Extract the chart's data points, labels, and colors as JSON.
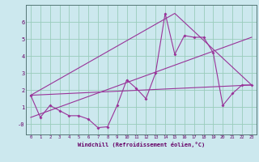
{
  "title": "",
  "xlabel": "Windchill (Refroidissement éolien,°C)",
  "ylabel": "",
  "bg_color": "#cce8ee",
  "line_color": "#993399",
  "grid_color": "#99ccbb",
  "xlim": [
    -0.5,
    23.5
  ],
  "ylim": [
    -0.6,
    7.0
  ],
  "yticks": [
    0,
    1,
    2,
    3,
    4,
    5,
    6
  ],
  "ytick_labels": [
    "-0",
    "1",
    "2",
    "3",
    "4",
    "5",
    "6"
  ],
  "xticks": [
    0,
    1,
    2,
    3,
    4,
    5,
    6,
    7,
    8,
    9,
    10,
    11,
    12,
    13,
    14,
    15,
    16,
    17,
    18,
    19,
    20,
    21,
    22,
    23
  ],
  "series1_x": [
    0,
    1,
    2,
    3,
    4,
    5,
    6,
    7,
    8,
    9,
    10,
    11,
    12,
    13,
    14,
    15,
    16,
    17,
    18,
    19,
    20,
    21,
    22,
    23
  ],
  "series1_y": [
    1.7,
    0.4,
    1.1,
    0.8,
    0.5,
    0.5,
    0.3,
    -0.2,
    -0.15,
    1.1,
    2.6,
    2.1,
    1.5,
    3.0,
    6.5,
    4.1,
    5.2,
    5.1,
    5.1,
    4.2,
    1.1,
    1.8,
    2.3,
    2.3
  ],
  "series2_x": [
    0,
    23
  ],
  "series2_y": [
    1.7,
    2.3
  ],
  "series3_x": [
    0,
    15,
    23
  ],
  "series3_y": [
    1.7,
    6.5,
    2.3
  ],
  "series4_x": [
    0,
    23
  ],
  "series4_y": [
    0.4,
    5.1
  ]
}
